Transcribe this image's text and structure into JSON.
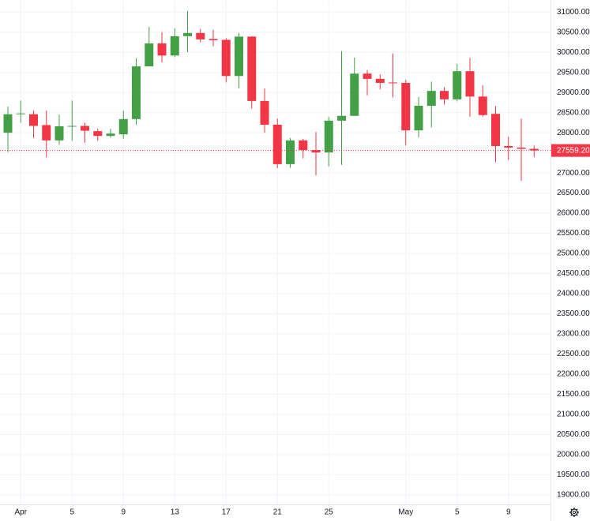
{
  "chart_data": {
    "type": "candlestick",
    "categories": [
      null,
      "Apr",
      null,
      null,
      null,
      "5",
      null,
      null,
      null,
      "9",
      null,
      null,
      null,
      "13",
      null,
      null,
      null,
      "17",
      null,
      null,
      null,
      "21",
      null,
      null,
      null,
      "25",
      null,
      null,
      null,
      null,
      null,
      "May",
      null,
      null,
      null,
      "5",
      null,
      null,
      null,
      "9",
      null,
      null
    ],
    "open": [
      28000,
      28470,
      28460,
      28190,
      27810,
      28160,
      28170,
      28040,
      27920,
      27960,
      28340,
      29650,
      30220,
      29920,
      30400,
      30480,
      30330,
      30310,
      29410,
      30390,
      28790,
      28200,
      27220,
      27810,
      27570,
      27510,
      28300,
      28420,
      29470,
      29340,
      29250,
      29240,
      28060,
      28670,
      29040,
      28830,
      29530,
      28900,
      28470,
      27670,
      27630,
      27600
    ],
    "high": [
      28650,
      28800,
      28550,
      28550,
      28450,
      28800,
      28250,
      28100,
      28100,
      28550,
      29850,
      30630,
      30500,
      30600,
      31030,
      30580,
      30560,
      30350,
      30480,
      30400,
      29100,
      28350,
      27870,
      27850,
      28020,
      28400,
      30030,
      29870,
      29560,
      29450,
      29970,
      29320,
      28890,
      29270,
      29130,
      29710,
      29860,
      29180,
      28660,
      27900,
      28350,
      27680
    ],
    "low": [
      27520,
      28250,
      27870,
      27390,
      27700,
      27800,
      27750,
      27800,
      27880,
      27850,
      28200,
      29650,
      29750,
      29880,
      30000,
      30250,
      30150,
      29250,
      29100,
      28600,
      28000,
      27120,
      27130,
      27360,
      26940,
      27160,
      27200,
      28430,
      28930,
      29080,
      28880,
      27680,
      27880,
      28130,
      28700,
      28780,
      28400,
      28400,
      27270,
      27330,
      26800,
      27400
    ],
    "close": [
      28460,
      28480,
      28170,
      27810,
      28160,
      28170,
      28050,
      27920,
      27980,
      28340,
      29650,
      30220,
      29920,
      30400,
      30480,
      30320,
      30300,
      29410,
      30390,
      28790,
      28200,
      27220,
      27810,
      27570,
      27510,
      28300,
      28420,
      29470,
      29340,
      29240,
      29230,
      28060,
      28670,
      29040,
      28830,
      29530,
      28900,
      28440,
      27670,
      27630,
      27600,
      27560
    ],
    "up_color": "#43a047",
    "down_color": "#f23645",
    "ylim": [
      18760,
      31300
    ],
    "yticks": [
      {
        "value": 19000,
        "label": "19000.00"
      },
      {
        "value": 19500,
        "label": "19500.00"
      },
      {
        "value": 20000,
        "label": "20000.00"
      },
      {
        "value": 20500,
        "label": "20500.00"
      },
      {
        "value": 21000,
        "label": "21000.00"
      },
      {
        "value": 21500,
        "label": "21500.00"
      },
      {
        "value": 22000,
        "label": "22000.00"
      },
      {
        "value": 22500,
        "label": "22500.00"
      },
      {
        "value": 23000,
        "label": "23000.00"
      },
      {
        "value": 23500,
        "label": "23500.00"
      },
      {
        "value": 24000,
        "label": "24000.00"
      },
      {
        "value": 24500,
        "label": "24500.00"
      },
      {
        "value": 25000,
        "label": "25000.00"
      },
      {
        "value": 25500,
        "label": "25500.00"
      },
      {
        "value": 26000,
        "label": "26000.00"
      },
      {
        "value": 26500,
        "label": "26500.00"
      },
      {
        "value": 27000,
        "label": "27000.00"
      },
      {
        "value": 27500,
        "label": "27500.00"
      },
      {
        "value": 28000,
        "label": "28000.00"
      },
      {
        "value": 28500,
        "label": "28500.00"
      },
      {
        "value": 29000,
        "label": "29000.00"
      },
      {
        "value": 29500,
        "label": "29500.00"
      },
      {
        "value": 30000,
        "label": "30000.00"
      },
      {
        "value": 30500,
        "label": "30500.00"
      },
      {
        "value": 31000,
        "label": "31000.00"
      }
    ],
    "last_price": {
      "value": 27559.2,
      "label": "27559.20"
    },
    "grid": true
  }
}
